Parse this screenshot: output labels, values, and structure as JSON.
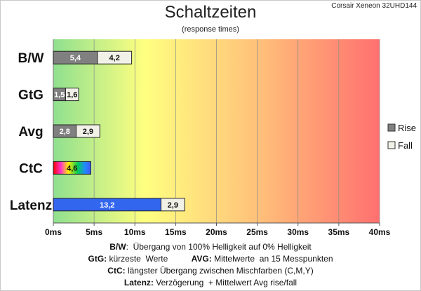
{
  "chart_data": {
    "type": "bar",
    "title": "Schaltzeiten",
    "subtitle": "(response times)",
    "model": "Corsair Xeneon 32UHD144",
    "xlim": [
      0,
      40
    ],
    "x_ticks": [
      "0ms",
      "5ms",
      "10ms",
      "15ms",
      "20ms",
      "25ms",
      "30ms",
      "35ms",
      "40ms"
    ],
    "background": "gradient green-yellow-orange-red",
    "categories": [
      "B/W",
      "GtG",
      "Avg",
      "CtC",
      "Latenz"
    ],
    "series": [
      {
        "name": "Rise",
        "values": [
          5.4,
          1.5,
          2.8,
          4.6,
          13.2
        ],
        "labels": [
          "5,4",
          "1,5",
          "2,8",
          "4,6",
          "13,2"
        ]
      },
      {
        "name": "Fall",
        "values": [
          4.2,
          1.6,
          2.9,
          null,
          2.9
        ],
        "labels": [
          "4,2",
          "1,6",
          "2,9",
          "",
          "2,9"
        ]
      }
    ],
    "legend": {
      "position": "right",
      "entries": [
        "Rise",
        "Fall"
      ]
    },
    "colors": {
      "rise": "#808080",
      "fall": "#f2f1e8",
      "ctc": "rainbow",
      "latenz": "#3366ee",
      "green": "#8fe08f",
      "yellow": "#ffff80",
      "red": "#ff7070"
    }
  },
  "notes": [
    {
      "b1": "B/W",
      "t1": ":  Übergang von 100% Helligkeit auf 0% Helligkeit",
      "b2": "",
      "t2": ""
    },
    {
      "b1": "GtG:",
      "t1": " kürzeste  Werte          ",
      "b2": "AVG:",
      "t2": " Mittelwerte  an 15 Messpunkten"
    },
    {
      "b1": "CtC:",
      "t1": " längster Übergang zwischen Mischfarben (C,M,Y)",
      "b2": "",
      "t2": ""
    },
    {
      "b1": "Latenz:",
      "t1": " Verzögerung  + Mittelwert Avg rise/fall",
      "b2": "",
      "t2": ""
    }
  ]
}
